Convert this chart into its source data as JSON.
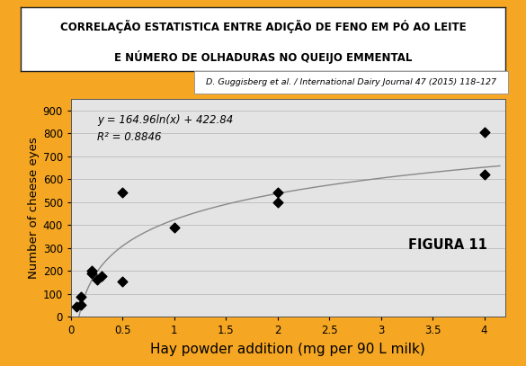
{
  "title_line1": "CORRELAÇÃO ESTATISTICA ENTRE ADIÇÃO DE FENO EM PÓ AO LEITE",
  "title_line2": "E NÚMERO DE OLHADURAS NO QUEIJO EMMENTAL",
  "xlabel": "Hay powder addition (mg per 90 L milk)",
  "ylabel": "Number of cheese eyes",
  "reference": "D. Guggisberg et al. / International Dairy Journal 47 (2015) 118–127",
  "equation": "y = 164.96ln(x) + 422.84",
  "r2": "R² = 0.8846",
  "figura": "FIGURA 11",
  "data_x": [
    0.05,
    0.1,
    0.1,
    0.2,
    0.2,
    0.25,
    0.3,
    0.5,
    0.5,
    1.0,
    2.0,
    2.0,
    4.0,
    4.0
  ],
  "data_y": [
    45,
    50,
    85,
    190,
    200,
    160,
    175,
    155,
    540,
    390,
    500,
    540,
    805,
    620
  ],
  "xlim": [
    0,
    4.2
  ],
  "ylim": [
    0,
    950
  ],
  "yticks": [
    0,
    100,
    200,
    300,
    400,
    500,
    600,
    700,
    800,
    900
  ],
  "xticks": [
    0,
    0.5,
    1.0,
    1.5,
    2.0,
    2.5,
    3.0,
    3.5,
    4.0
  ],
  "bg_outer": "#F5A623",
  "bg_plot_inner": "#E4E4E4",
  "title_box_color": "#FFFFFF",
  "curve_color": "#888888",
  "marker_color": "#000000",
  "grid_color": "#BBBBBB",
  "title_fontsize": 8.5,
  "xlabel_fontsize": 11,
  "ylabel_fontsize": 9.5,
  "eq_fontsize": 8.5,
  "ref_fontsize": 6.8,
  "figura_fontsize": 10.5
}
